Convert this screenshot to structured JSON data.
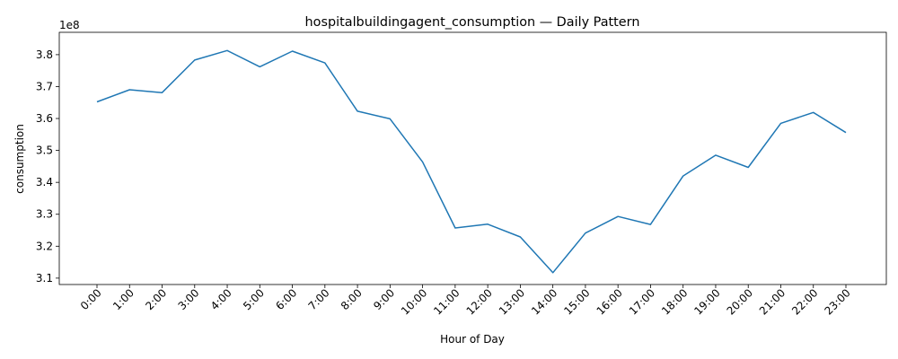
{
  "chart_data": {
    "type": "line",
    "title": "hospitalbuildingagent_consumption — Daily Pattern",
    "xlabel": "Hour of Day",
    "ylabel": "consumption",
    "y_offset_label": "1e8",
    "categories": [
      "0:00",
      "1:00",
      "2:00",
      "3:00",
      "4:00",
      "5:00",
      "6:00",
      "7:00",
      "8:00",
      "9:00",
      "10:00",
      "11:00",
      "12:00",
      "13:00",
      "14:00",
      "15:00",
      "16:00",
      "17:00",
      "18:00",
      "19:00",
      "20:00",
      "21:00",
      "22:00",
      "23:00"
    ],
    "series": [
      {
        "values": [
          3.652,
          3.69,
          3.681,
          3.783,
          3.813,
          3.762,
          3.811,
          3.774,
          3.623,
          3.599,
          3.464,
          3.257,
          3.269,
          3.229,
          3.117,
          3.241,
          3.293,
          3.268,
          3.42,
          3.485,
          3.447,
          3.585,
          3.619,
          3.556
        ],
        "color": "#1f77b4"
      }
    ],
    "yticks": [
      "3.1",
      "3.2",
      "3.3",
      "3.4",
      "3.5",
      "3.6",
      "3.7",
      "3.8"
    ],
    "ylim": [
      3.08,
      3.87
    ],
    "grid": false,
    "legend": "none"
  }
}
